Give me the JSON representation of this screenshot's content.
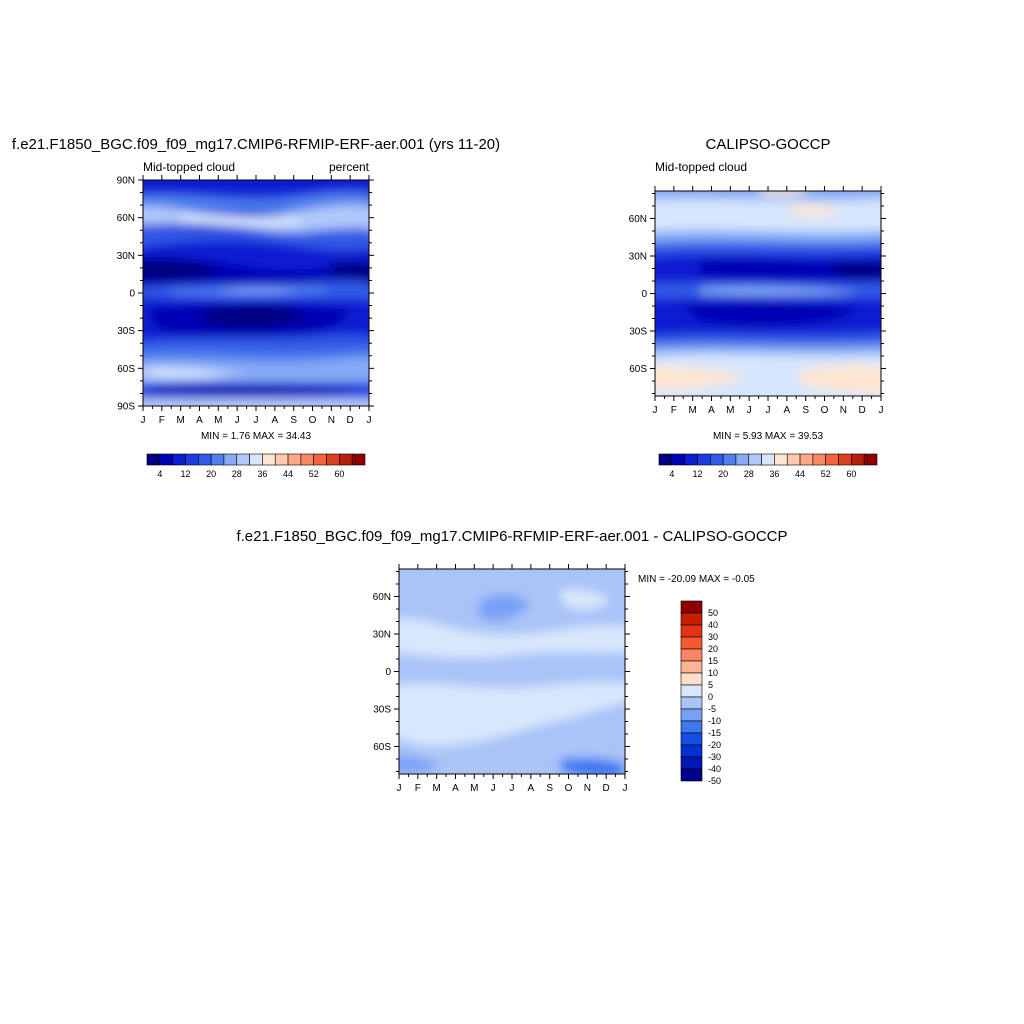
{
  "panel_model": {
    "title": "f.e21.F1850_BGC.f09_f09_mg17.CMIP6-RFMIP-ERF-aer.001 (yrs 11-20)",
    "subtitle_left": "Mid-topped cloud",
    "subtitle_right": "percent",
    "stats": "MIN =    1.76 MAX =  34.43"
  },
  "panel_obs": {
    "title": "CALIPSO-GOCCP",
    "subtitle_left": "Mid-topped cloud",
    "stats": "MIN =    5.93 MAX =  39.53"
  },
  "panel_diff": {
    "title": "f.e21.F1850_BGC.f09_f09_mg17.CMIP6-RFMIP-ERF-aer.001 - CALIPSO-GOCCP",
    "stats": "MIN = -20.09 MAX =  -0.05"
  },
  "colors": {
    "abs_scale": [
      "#00007f",
      "#0000b4",
      "#0a1ed2",
      "#1e3cdc",
      "#325ae6",
      "#5080ee",
      "#86aaf6",
      "#b0c8fa",
      "#d6e6fc",
      "#fde5d2",
      "#fcc8ae",
      "#fca98a",
      "#fa8662",
      "#f0643c",
      "#d8401e",
      "#b41e0a",
      "#8c0000"
    ],
    "diff_scale": [
      "#000090",
      "#0018b4",
      "#0032d2",
      "#1450e6",
      "#3c78f0",
      "#78a0f6",
      "#aac4f8",
      "#d8e8fc",
      "#fde0cc",
      "#fcb496",
      "#fa8464",
      "#f45a32",
      "#e63214",
      "#c81e00",
      "#8c0000"
    ]
  },
  "chart_data": [
    {
      "type": "heatmap",
      "panel": "model",
      "x_ticks": [
        "J",
        "F",
        "M",
        "A",
        "M",
        "J",
        "J",
        "A",
        "S",
        "O",
        "N",
        "D",
        "J"
      ],
      "y_ticks": [
        "90N",
        "60N",
        "30N",
        "0",
        "30S",
        "60S",
        "90S"
      ],
      "ylim": [
        -90,
        90
      ],
      "colorbar_ticks": [
        "4",
        "12",
        "20",
        "28",
        "36",
        "44",
        "52",
        "60"
      ],
      "colorbar_levels": [
        4,
        8,
        12,
        16,
        20,
        24,
        28,
        32,
        36,
        40,
        44,
        48,
        52,
        56,
        60
      ]
    },
    {
      "type": "heatmap",
      "panel": "obs",
      "x_ticks": [
        "J",
        "F",
        "M",
        "A",
        "M",
        "J",
        "J",
        "A",
        "S",
        "O",
        "N",
        "D",
        "J"
      ],
      "y_ticks": [
        "60N",
        "30N",
        "0",
        "30S",
        "60S"
      ],
      "ylim": [
        -82,
        82
      ],
      "colorbar_ticks": [
        "4",
        "12",
        "20",
        "28",
        "36",
        "44",
        "52",
        "60"
      ],
      "colorbar_levels": [
        4,
        8,
        12,
        16,
        20,
        24,
        28,
        32,
        36,
        40,
        44,
        48,
        52,
        56,
        60
      ]
    },
    {
      "type": "heatmap",
      "panel": "difference",
      "x_ticks": [
        "J",
        "F",
        "M",
        "A",
        "M",
        "J",
        "J",
        "A",
        "S",
        "O",
        "N",
        "D",
        "J"
      ],
      "y_ticks": [
        "60N",
        "30N",
        "0",
        "30S",
        "60S"
      ],
      "ylim": [
        -82,
        82
      ],
      "colorbar_levels": [
        "50",
        "40",
        "30",
        "20",
        "15",
        "10",
        "5",
        "0",
        "-5",
        "-10",
        "-15",
        "-20",
        "-30",
        "-40",
        "-50"
      ]
    }
  ]
}
